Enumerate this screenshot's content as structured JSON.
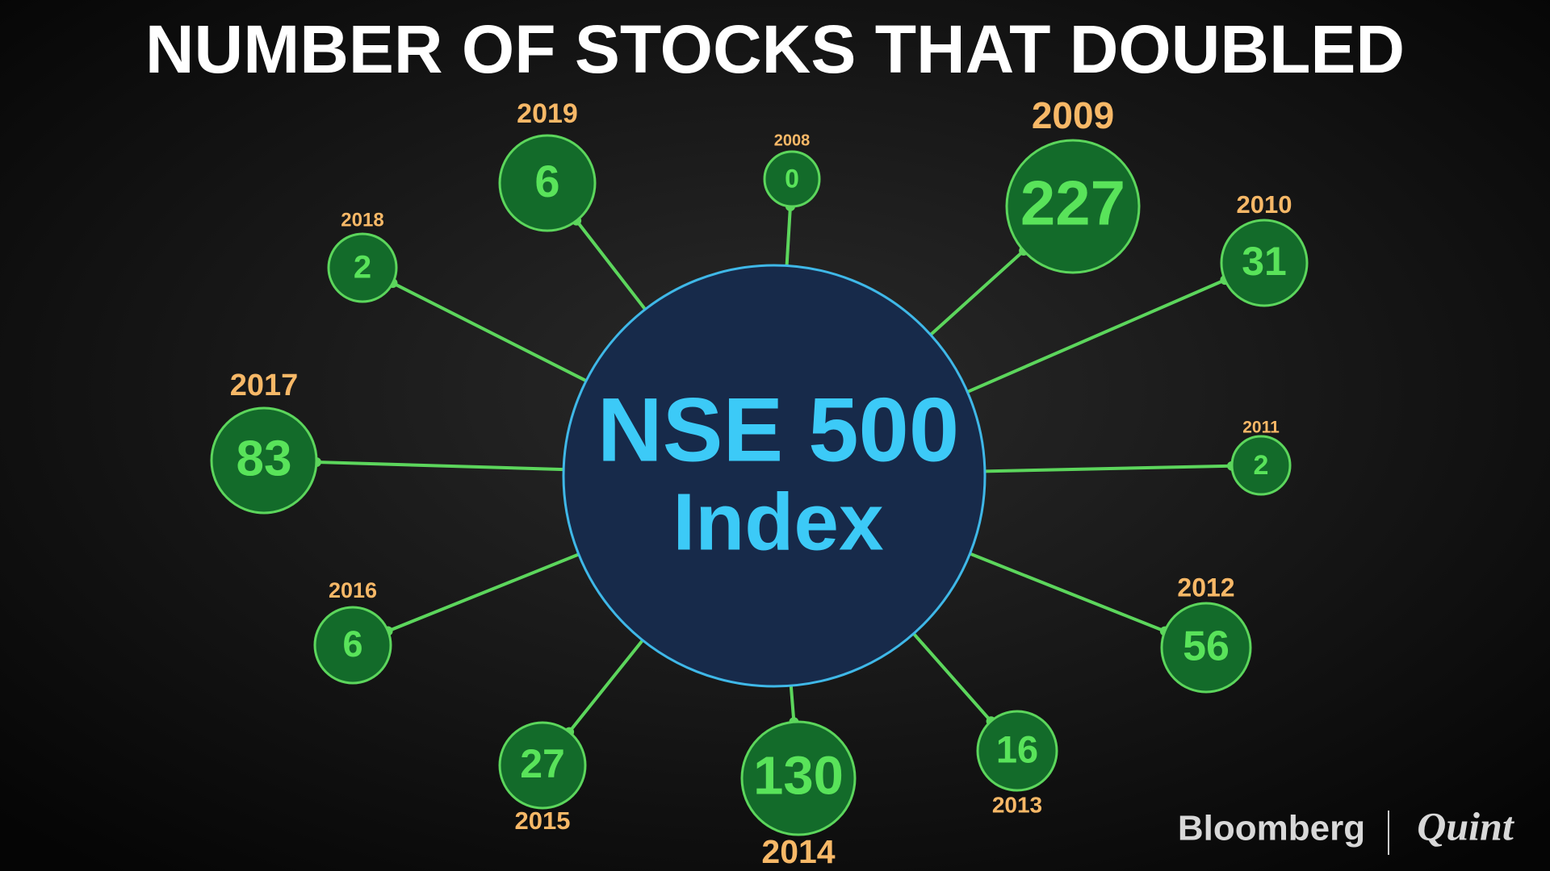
{
  "title": "NUMBER OF STOCKS THAT DOUBLED",
  "center": {
    "line1": "NSE 500",
    "line2": "Index"
  },
  "nodes": [
    {
      "year": "2008",
      "value": 0
    },
    {
      "year": "2009",
      "value": 227
    },
    {
      "year": "2010",
      "value": 31
    },
    {
      "year": "2011",
      "value": 2
    },
    {
      "year": "2012",
      "value": 56
    },
    {
      "year": "2013",
      "value": 16
    },
    {
      "year": "2014",
      "value": 130
    },
    {
      "year": "2015",
      "value": 27
    },
    {
      "year": "2016",
      "value": 6
    },
    {
      "year": "2017",
      "value": 83
    },
    {
      "year": "2018",
      "value": 2
    },
    {
      "year": "2019",
      "value": 6
    }
  ],
  "brand": {
    "left": "Bloomberg",
    "right": "Quint"
  }
}
